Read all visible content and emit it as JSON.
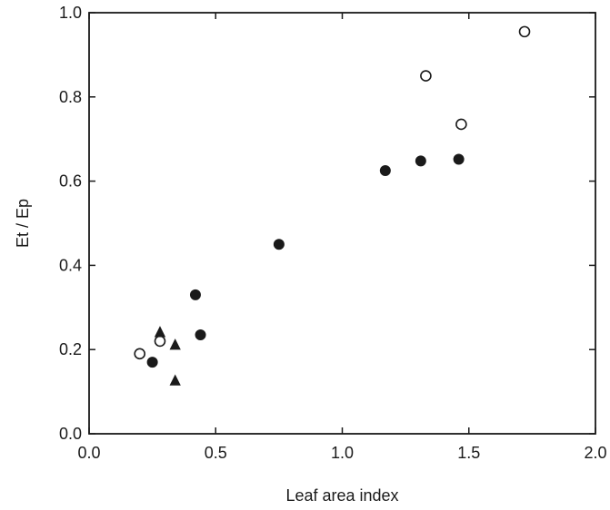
{
  "chart_data": {
    "type": "scatter",
    "title": "",
    "xlabel": "Leaf area index",
    "ylabel": "Et / Ep",
    "xlim": [
      0.0,
      2.0
    ],
    "ylim": [
      0.0,
      1.0
    ],
    "x_ticks": [
      "0.0",
      "0.5",
      "1.0",
      "1.5",
      "2.0"
    ],
    "y_ticks": [
      "0.0",
      "0.2",
      "0.4",
      "0.6",
      "0.8",
      "1.0"
    ],
    "grid": false,
    "legend": "none",
    "series": [
      {
        "marker": "open-circle",
        "color": "#1a1a1a",
        "points": [
          {
            "x": 0.2,
            "y": 0.19
          },
          {
            "x": 0.28,
            "y": 0.22
          },
          {
            "x": 1.33,
            "y": 0.85
          },
          {
            "x": 1.47,
            "y": 0.735
          },
          {
            "x": 1.72,
            "y": 0.955
          }
        ]
      },
      {
        "marker": "filled-circle",
        "color": "#1a1a1a",
        "points": [
          {
            "x": 0.25,
            "y": 0.17
          },
          {
            "x": 0.42,
            "y": 0.33
          },
          {
            "x": 0.44,
            "y": 0.235
          },
          {
            "x": 0.75,
            "y": 0.45
          },
          {
            "x": 1.17,
            "y": 0.625
          },
          {
            "x": 1.31,
            "y": 0.648
          },
          {
            "x": 1.46,
            "y": 0.652
          }
        ]
      },
      {
        "marker": "filled-triangle",
        "color": "#1a1a1a",
        "points": [
          {
            "x": 0.28,
            "y": 0.24
          },
          {
            "x": 0.34,
            "y": 0.21
          },
          {
            "x": 0.34,
            "y": 0.125
          }
        ]
      }
    ]
  }
}
